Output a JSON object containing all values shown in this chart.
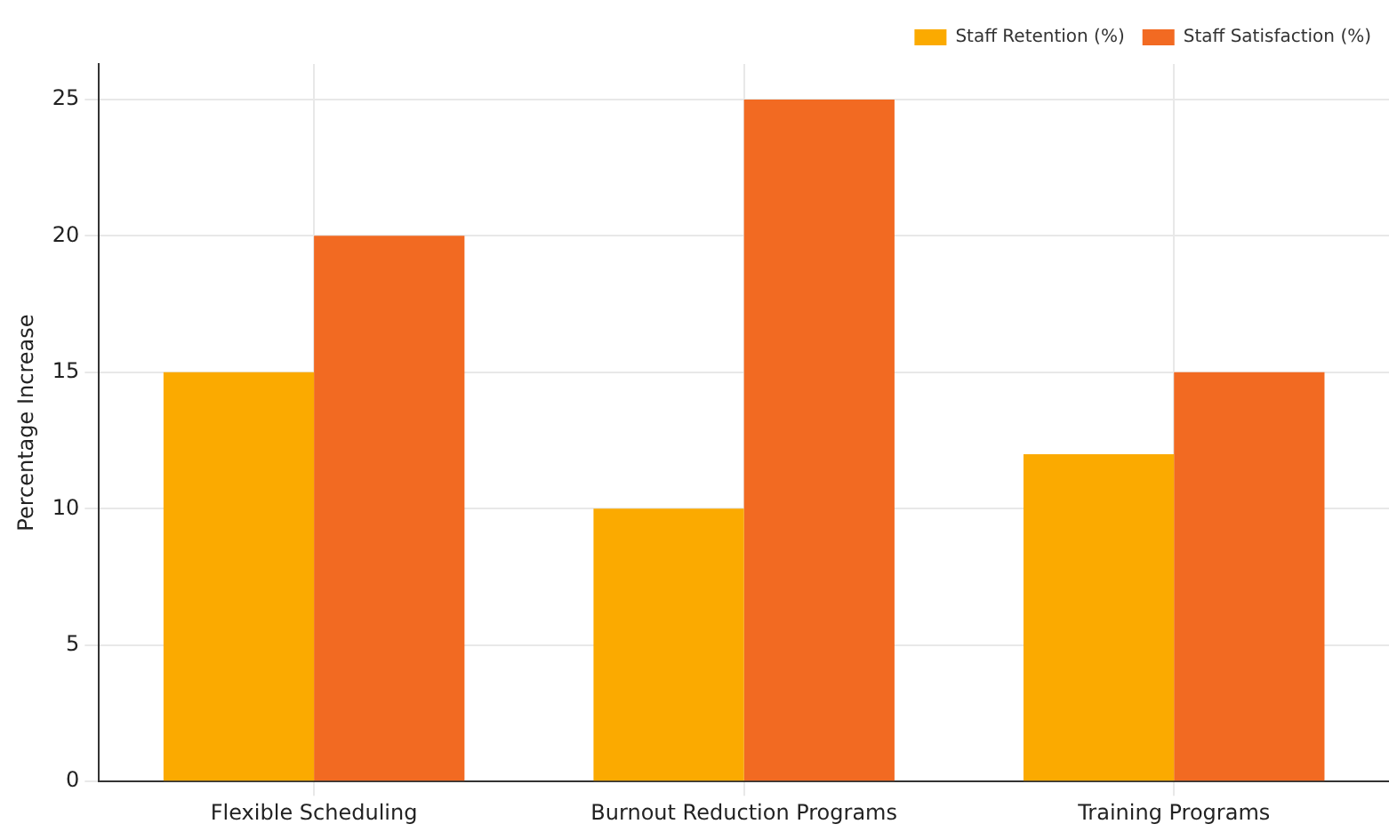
{
  "chart_data": {
    "type": "bar",
    "ylabel": "Percentage Increase",
    "categories": [
      "Flexible Scheduling",
      "Burnout Reduction Programs",
      "Training Programs"
    ],
    "series": [
      {
        "name": "Staff Retention (%)",
        "color": "#fbaa00",
        "values": [
          15,
          10,
          12
        ]
      },
      {
        "name": "Staff Satisfaction (%)",
        "color": "#f26a22",
        "values": [
          20,
          25,
          15
        ]
      }
    ],
    "ylim": [
      0,
      26.3
    ],
    "yticks": [
      0,
      5,
      10,
      15,
      20,
      25
    ],
    "grid": true,
    "legend": "top right"
  }
}
